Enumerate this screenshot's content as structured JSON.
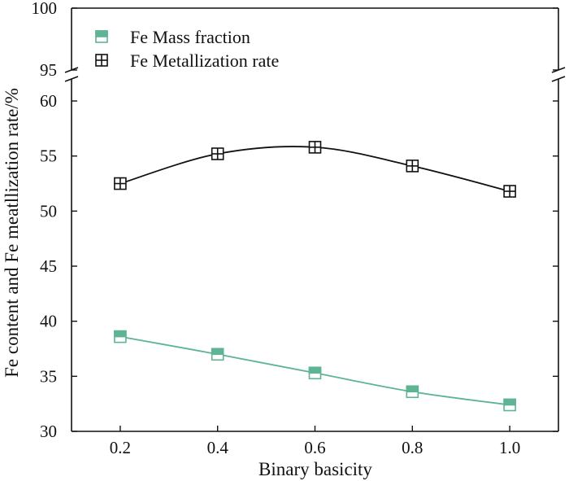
{
  "chart_data": {
    "type": "line",
    "title": "",
    "xlabel": "Binary basicity",
    "ylabel": "Fe content and Fe meatllization rate/%",
    "x": [
      0.2,
      0.4,
      0.6,
      0.8,
      1.0
    ],
    "x_tick_labels": [
      "0.2",
      "0.4",
      "0.6",
      "0.8",
      "1.0"
    ],
    "xlim": [
      0.1,
      1.1
    ],
    "y_tick_labels_lower": [
      "30",
      "35",
      "40",
      "45",
      "50",
      "55",
      "60"
    ],
    "y_tick_labels_upper": [
      "95",
      "100"
    ],
    "ylim_lower": [
      30,
      62
    ],
    "ylim_upper": [
      95,
      100
    ],
    "axis_break": "between 62 and 95",
    "grid": false,
    "legend_position": "top-left",
    "series": [
      {
        "name": "Fe Mass fraction",
        "marker": "half-filled-square",
        "color": "#5fb494",
        "values": [
          38.6,
          37.0,
          35.3,
          33.6,
          32.4
        ]
      },
      {
        "name": "Fe Metallization rate",
        "marker": "crossed-square",
        "color": "#111111",
        "values": [
          52.5,
          55.2,
          55.8,
          54.1,
          51.8
        ]
      }
    ]
  }
}
